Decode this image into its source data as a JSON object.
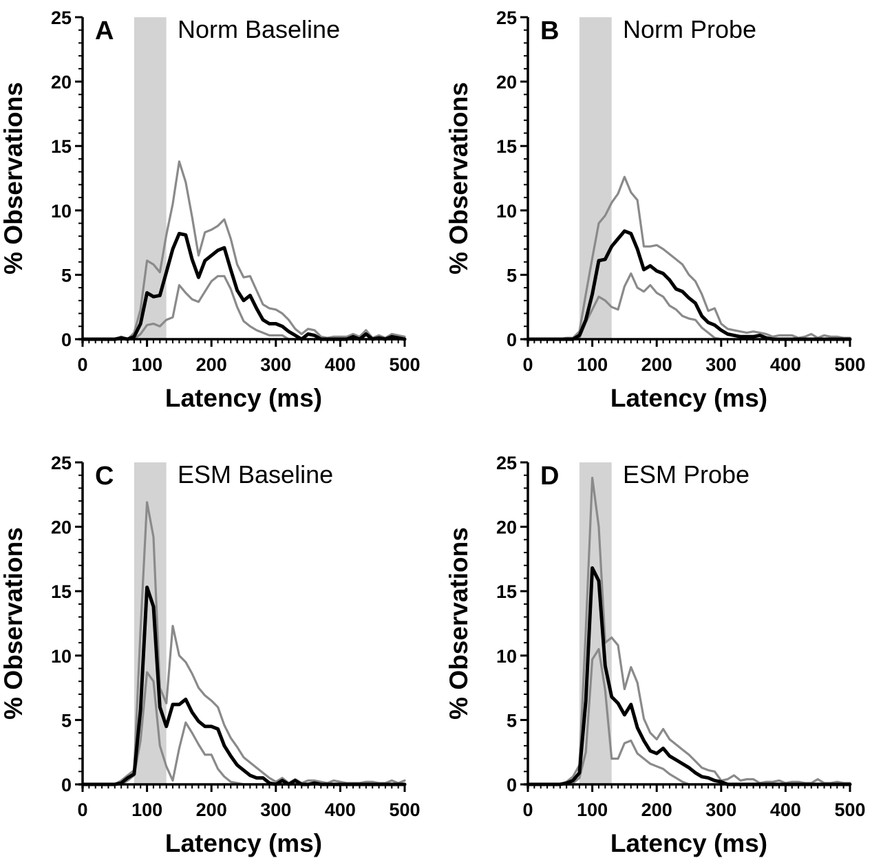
{
  "colors": {
    "mean_line": "#000000",
    "bound_lines": "#8a8a8a",
    "shaded_window": "#d3d3d3",
    "axis": "#000000",
    "background": "#ffffff"
  },
  "chart_data": [
    {
      "type": "line",
      "panel": "A",
      "title": "Norm Baseline",
      "xlabel": "Latency (ms)",
      "ylabel": "% Observations",
      "xlim": [
        0,
        500
      ],
      "ylim": [
        0,
        25
      ],
      "xticks": [
        "0",
        "100",
        "200",
        "300",
        "400",
        "500"
      ],
      "yticks": [
        "0",
        "5",
        "10",
        "15",
        "20",
        "25"
      ],
      "shaded_region": [
        80,
        130
      ],
      "grid": false,
      "x": [
        0,
        10,
        20,
        30,
        40,
        50,
        60,
        70,
        80,
        90,
        100,
        110,
        120,
        130,
        140,
        150,
        160,
        170,
        180,
        190,
        200,
        210,
        220,
        230,
        240,
        250,
        260,
        270,
        280,
        290,
        300,
        310,
        320,
        330,
        340,
        350,
        360,
        370,
        380,
        390,
        400,
        410,
        420,
        430,
        440,
        450,
        460,
        470,
        480,
        490,
        500
      ],
      "series": [
        {
          "values": [
            0,
            0,
            0,
            0,
            0,
            0,
            0.1,
            0,
            0.2,
            1.2,
            3.6,
            3.3,
            3.4,
            5.2,
            7.0,
            8.2,
            8.1,
            6.2,
            4.8,
            6.1,
            6.5,
            6.9,
            7.1,
            5.4,
            3.8,
            3.0,
            3.4,
            2.4,
            1.5,
            1.2,
            1.2,
            1.0,
            0.6,
            0.3,
            0,
            0.4,
            0.3,
            0,
            0,
            0,
            0,
            0,
            0.2,
            0,
            0.4,
            0,
            0.1,
            0,
            0.2,
            0.1,
            0
          ]
        },
        {
          "values": [
            0,
            0,
            0,
            0,
            0,
            0,
            0.2,
            0,
            0.5,
            2.3,
            6.1,
            5.8,
            5.2,
            8.1,
            10.5,
            13.8,
            12.2,
            9.5,
            6.5,
            8.3,
            8.5,
            8.8,
            9.3,
            7.8,
            5.8,
            4.8,
            4.9,
            3.8,
            2.7,
            2.4,
            2.3,
            2.0,
            1.5,
            0.8,
            0.4,
            0.8,
            0.7,
            0.2,
            0.1,
            0.2,
            0.2,
            0.2,
            0.4,
            0.2,
            0.7,
            0.1,
            0.3,
            0.1,
            0.4,
            0.3,
            0.2
          ]
        },
        {
          "values": [
            0,
            0,
            0,
            0,
            0,
            0,
            0,
            0,
            0,
            0.4,
            1.1,
            1.2,
            1.0,
            1.5,
            1.7,
            4.2,
            3.6,
            3.1,
            2.9,
            3.7,
            4.5,
            4.9,
            4.9,
            3.9,
            2.5,
            1.4,
            1.0,
            0.7,
            0.5,
            0.3,
            0.3,
            0.3,
            0,
            0,
            0,
            0,
            0,
            0,
            0,
            0,
            0,
            0,
            0,
            0,
            0,
            0,
            0,
            0,
            0,
            0,
            0
          ]
        }
      ]
    },
    {
      "type": "line",
      "panel": "B",
      "title": "Norm Probe",
      "xlabel": "Latency (ms)",
      "ylabel": "% Observations",
      "xlim": [
        0,
        500
      ],
      "ylim": [
        0,
        25
      ],
      "xticks": [
        "0",
        "100",
        "200",
        "300",
        "400",
        "500"
      ],
      "yticks": [
        "0",
        "5",
        "10",
        "15",
        "20",
        "25"
      ],
      "shaded_region": [
        80,
        130
      ],
      "grid": false,
      "x": [
        0,
        10,
        20,
        30,
        40,
        50,
        60,
        70,
        80,
        90,
        100,
        110,
        120,
        130,
        140,
        150,
        160,
        170,
        180,
        190,
        200,
        210,
        220,
        230,
        240,
        250,
        260,
        270,
        280,
        290,
        300,
        310,
        320,
        330,
        340,
        350,
        360,
        370,
        380,
        390,
        400,
        410,
        420,
        430,
        440,
        450,
        460,
        470,
        480,
        490,
        500
      ],
      "series": [
        {
          "values": [
            0,
            0,
            0,
            0,
            0,
            0,
            0,
            0,
            0.3,
            1.5,
            3.5,
            6.1,
            6.2,
            7.2,
            7.8,
            8.4,
            8.2,
            7.0,
            5.4,
            5.7,
            5.3,
            5.1,
            4.6,
            3.9,
            3.7,
            3.2,
            2.8,
            1.8,
            1.3,
            1.1,
            0.7,
            0.4,
            0.3,
            0.2,
            0.2,
            0.2,
            0.3,
            0.1,
            0,
            0,
            0,
            0,
            0,
            0,
            0,
            0,
            0,
            0,
            0,
            0,
            0
          ]
        },
        {
          "values": [
            0,
            0,
            0,
            0,
            0,
            0,
            0.1,
            0.1,
            0.6,
            3.5,
            6.3,
            9.0,
            9.6,
            10.6,
            11.3,
            12.6,
            11.4,
            10.8,
            7.2,
            7.2,
            7.3,
            7.0,
            6.6,
            6.2,
            5.8,
            5.0,
            4.5,
            3.5,
            2.2,
            2.4,
            1.2,
            0.8,
            0.7,
            0.6,
            0.5,
            0.6,
            0.5,
            0.4,
            0.2,
            0.3,
            0.3,
            0.3,
            0.1,
            0.2,
            0.4,
            0.1,
            0.3,
            0.2,
            0.2,
            0.1,
            0.1
          ]
        },
        {
          "values": [
            0,
            0,
            0,
            0,
            0,
            0,
            0,
            0,
            0.1,
            1.3,
            2.3,
            3.3,
            3.0,
            2.5,
            2.3,
            4.1,
            5.1,
            4.0,
            3.7,
            4.2,
            3.6,
            3.3,
            2.6,
            2.3,
            1.8,
            1.6,
            1.5,
            0.9,
            0.5,
            0.1,
            0,
            0,
            0,
            0,
            0,
            0,
            0,
            0,
            0,
            0,
            0,
            0,
            0,
            0,
            0,
            0,
            0,
            0,
            0,
            0,
            0
          ]
        }
      ]
    },
    {
      "type": "line",
      "panel": "C",
      "title": "ESM Baseline",
      "xlabel": "Latency (ms)",
      "ylabel": "% Observations",
      "xlim": [
        0,
        500
      ],
      "ylim": [
        0,
        25
      ],
      "xticks": [
        "0",
        "100",
        "200",
        "300",
        "400",
        "500"
      ],
      "yticks": [
        "0",
        "5",
        "10",
        "15",
        "20",
        "25"
      ],
      "shaded_region": [
        80,
        130
      ],
      "grid": false,
      "x": [
        0,
        10,
        20,
        30,
        40,
        50,
        60,
        70,
        80,
        90,
        100,
        110,
        120,
        130,
        140,
        150,
        160,
        170,
        180,
        190,
        200,
        210,
        220,
        230,
        240,
        250,
        260,
        270,
        280,
        290,
        300,
        310,
        320,
        330,
        340,
        350,
        360,
        370,
        380,
        390,
        400,
        410,
        420,
        430,
        440,
        450,
        460,
        470,
        480,
        490,
        500
      ],
      "series": [
        {
          "values": [
            0,
            0,
            0,
            0,
            0,
            0,
            0.1,
            0.5,
            0.8,
            5.8,
            15.3,
            13.8,
            6.0,
            4.5,
            6.2,
            6.2,
            6.6,
            5.6,
            4.9,
            4.5,
            4.5,
            4.3,
            3.0,
            2.2,
            1.5,
            1.1,
            0.7,
            0.5,
            0.5,
            0.1,
            0,
            0.3,
            0,
            0.3,
            0,
            0,
            0.1,
            0,
            0,
            0,
            0,
            0,
            0,
            0,
            0,
            0,
            0,
            0,
            0,
            0,
            0
          ]
        },
        {
          "values": [
            0,
            0,
            0,
            0,
            0,
            0,
            0.3,
            0.7,
            1.1,
            12.0,
            21.9,
            19.2,
            7.5,
            6.3,
            12.3,
            10.0,
            9.5,
            8.6,
            7.5,
            6.9,
            6.5,
            6.0,
            4.6,
            3.6,
            2.9,
            2.1,
            1.7,
            1.3,
            0.9,
            0.5,
            0.2,
            0.5,
            0.1,
            0.4,
            0.1,
            0.3,
            0.3,
            0.2,
            0.1,
            0.3,
            0.2,
            0.1,
            0.1,
            0.1,
            0.2,
            0.2,
            0.1,
            0.1,
            0.3,
            0.1,
            0.3
          ]
        },
        {
          "values": [
            0,
            0,
            0,
            0,
            0,
            0,
            0,
            0.3,
            0.7,
            3.4,
            8.7,
            8.0,
            3.0,
            1.4,
            0.3,
            2.8,
            4.8,
            4.0,
            3.1,
            2.3,
            2.3,
            1.2,
            0.6,
            0.2,
            0.1,
            0,
            0,
            0,
            0,
            0,
            0,
            0,
            0,
            0,
            0,
            0,
            0,
            0,
            0,
            0,
            0,
            0,
            0,
            0,
            0,
            0,
            0,
            0,
            0,
            0,
            0
          ]
        }
      ]
    },
    {
      "type": "line",
      "panel": "D",
      "title": "ESM Probe",
      "xlabel": "Latency (ms)",
      "ylabel": "% Observations",
      "xlim": [
        0,
        500
      ],
      "ylim": [
        0,
        25
      ],
      "xticks": [
        "0",
        "100",
        "200",
        "300",
        "400",
        "500"
      ],
      "yticks": [
        "0",
        "5",
        "10",
        "15",
        "20",
        "25"
      ],
      "shaded_region": [
        80,
        130
      ],
      "grid": false,
      "x": [
        0,
        10,
        20,
        30,
        40,
        50,
        60,
        70,
        80,
        90,
        100,
        110,
        120,
        130,
        140,
        150,
        160,
        170,
        180,
        190,
        200,
        210,
        220,
        230,
        240,
        250,
        260,
        270,
        280,
        290,
        300,
        310,
        320,
        330,
        340,
        350,
        360,
        370,
        380,
        390,
        400,
        410,
        420,
        430,
        440,
        450,
        460,
        470,
        480,
        490,
        500
      ],
      "series": [
        {
          "values": [
            0,
            0,
            0,
            0,
            0,
            0,
            0.1,
            0.3,
            0.9,
            6.5,
            16.8,
            15.8,
            9.2,
            6.8,
            6.3,
            5.4,
            6.2,
            4.4,
            3.4,
            2.6,
            2.4,
            2.8,
            2.2,
            1.9,
            1.6,
            1.3,
            0.9,
            0.6,
            0.5,
            0.3,
            0.2,
            0,
            0,
            0,
            0,
            0,
            0,
            0,
            0,
            0,
            0,
            0,
            0,
            0,
            0,
            0,
            0,
            0,
            0,
            0,
            0
          ]
        },
        {
          "values": [
            0,
            0,
            0,
            0,
            0,
            0,
            0.2,
            0.6,
            1.5,
            12.0,
            23.8,
            20.0,
            11.0,
            11.4,
            10.8,
            7.4,
            9.1,
            7.9,
            5.1,
            4.0,
            3.5,
            4.3,
            3.5,
            3.1,
            2.7,
            2.3,
            1.8,
            1.3,
            1.1,
            1.0,
            0.3,
            0.4,
            0.7,
            0.3,
            0.4,
            0.4,
            0.1,
            0.2,
            0.2,
            0.3,
            0.1,
            0.2,
            0.2,
            0.1,
            0.1,
            0.4,
            0.1,
            0.1,
            0.2,
            0.1,
            0.1
          ]
        },
        {
          "values": [
            0,
            0,
            0,
            0,
            0,
            0,
            0,
            0.1,
            0.5,
            2.5,
            9.7,
            10.5,
            7.3,
            2.0,
            2.0,
            3.2,
            3.4,
            2.4,
            2.0,
            1.6,
            1.4,
            1.2,
            0.8,
            0.5,
            0.2,
            0,
            0,
            0,
            0,
            0,
            0,
            0,
            0,
            0,
            0,
            0,
            0,
            0,
            0,
            0,
            0,
            0,
            0,
            0,
            0,
            0,
            0,
            0,
            0,
            0,
            0
          ]
        }
      ]
    }
  ]
}
